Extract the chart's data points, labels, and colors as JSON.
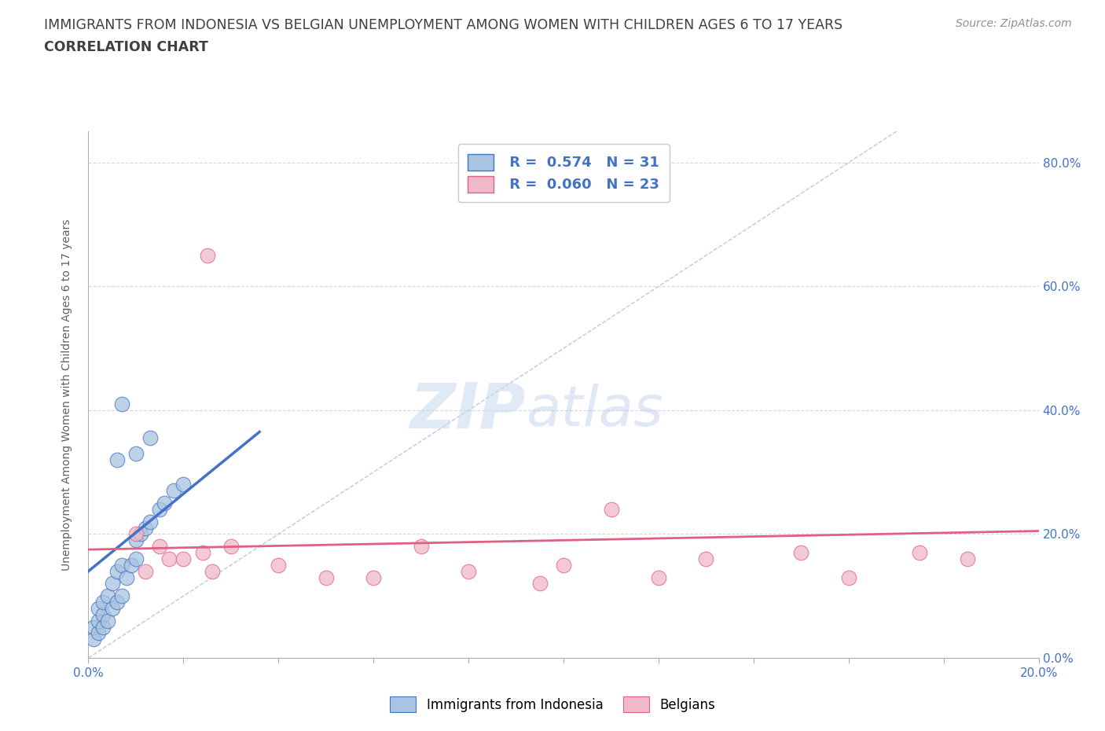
{
  "title_line1": "IMMIGRANTS FROM INDONESIA VS BELGIAN UNEMPLOYMENT AMONG WOMEN WITH CHILDREN AGES 6 TO 17 YEARS",
  "title_line2": "CORRELATION CHART",
  "source_text": "Source: ZipAtlas.com",
  "ylabel": "Unemployment Among Women with Children Ages 6 to 17 years",
  "xlim": [
    0.0,
    0.2
  ],
  "ylim": [
    0.0,
    0.85
  ],
  "xticks": [
    0.0,
    0.02,
    0.04,
    0.06,
    0.08,
    0.1,
    0.12,
    0.14,
    0.16,
    0.18,
    0.2
  ],
  "yticks": [
    0.0,
    0.2,
    0.4,
    0.6,
    0.8
  ],
  "ytick_labels_right": [
    "0.0%",
    "20.0%",
    "40.0%",
    "60.0%",
    "80.0%"
  ],
  "xtick_labels": [
    "0.0%",
    "",
    "",
    "",
    "",
    "",
    "",
    "",
    "",
    "",
    "20.0%"
  ],
  "color_blue": "#a8c4e0",
  "color_pink": "#f0b8c8",
  "color_blue_line": "#4472c4",
  "color_pink_line": "#e06080",
  "color_diag": "#c0c8d8",
  "watermark_zip": "ZIP",
  "watermark_atlas": "atlas",
  "legend_R1": "R =  0.574",
  "legend_N1": "N = 31",
  "legend_R2": "R =  0.060",
  "legend_N2": "N = 23",
  "blue_points_x": [
    0.001,
    0.001,
    0.002,
    0.002,
    0.002,
    0.003,
    0.003,
    0.003,
    0.004,
    0.004,
    0.005,
    0.005,
    0.006,
    0.006,
    0.007,
    0.007,
    0.008,
    0.009,
    0.01,
    0.01,
    0.011,
    0.012,
    0.013,
    0.015,
    0.016,
    0.018,
    0.02,
    0.007,
    0.01,
    0.013,
    0.006
  ],
  "blue_points_y": [
    0.03,
    0.05,
    0.04,
    0.06,
    0.08,
    0.05,
    0.07,
    0.09,
    0.06,
    0.1,
    0.08,
    0.12,
    0.09,
    0.14,
    0.1,
    0.15,
    0.13,
    0.15,
    0.16,
    0.19,
    0.2,
    0.21,
    0.22,
    0.24,
    0.25,
    0.27,
    0.28,
    0.41,
    0.33,
    0.355,
    0.32
  ],
  "pink_points_x": [
    0.01,
    0.012,
    0.015,
    0.017,
    0.02,
    0.024,
    0.026,
    0.03,
    0.04,
    0.05,
    0.06,
    0.07,
    0.08,
    0.095,
    0.1,
    0.11,
    0.12,
    0.13,
    0.15,
    0.16,
    0.175,
    0.185,
    0.025
  ],
  "pink_points_y": [
    0.2,
    0.14,
    0.18,
    0.16,
    0.16,
    0.17,
    0.14,
    0.18,
    0.15,
    0.13,
    0.13,
    0.18,
    0.14,
    0.12,
    0.15,
    0.24,
    0.13,
    0.16,
    0.17,
    0.13,
    0.17,
    0.16,
    0.65
  ],
  "blue_trend_x0": 0.0,
  "blue_trend_y0": 0.14,
  "blue_trend_x1": 0.036,
  "blue_trend_y1": 0.365,
  "pink_trend_x0": 0.0,
  "pink_trend_y0": 0.175,
  "pink_trend_x1": 0.2,
  "pink_trend_y1": 0.205,
  "background_color": "#ffffff",
  "grid_color": "#d0d8e8",
  "title_color": "#404040",
  "axis_label_color": "#606060"
}
